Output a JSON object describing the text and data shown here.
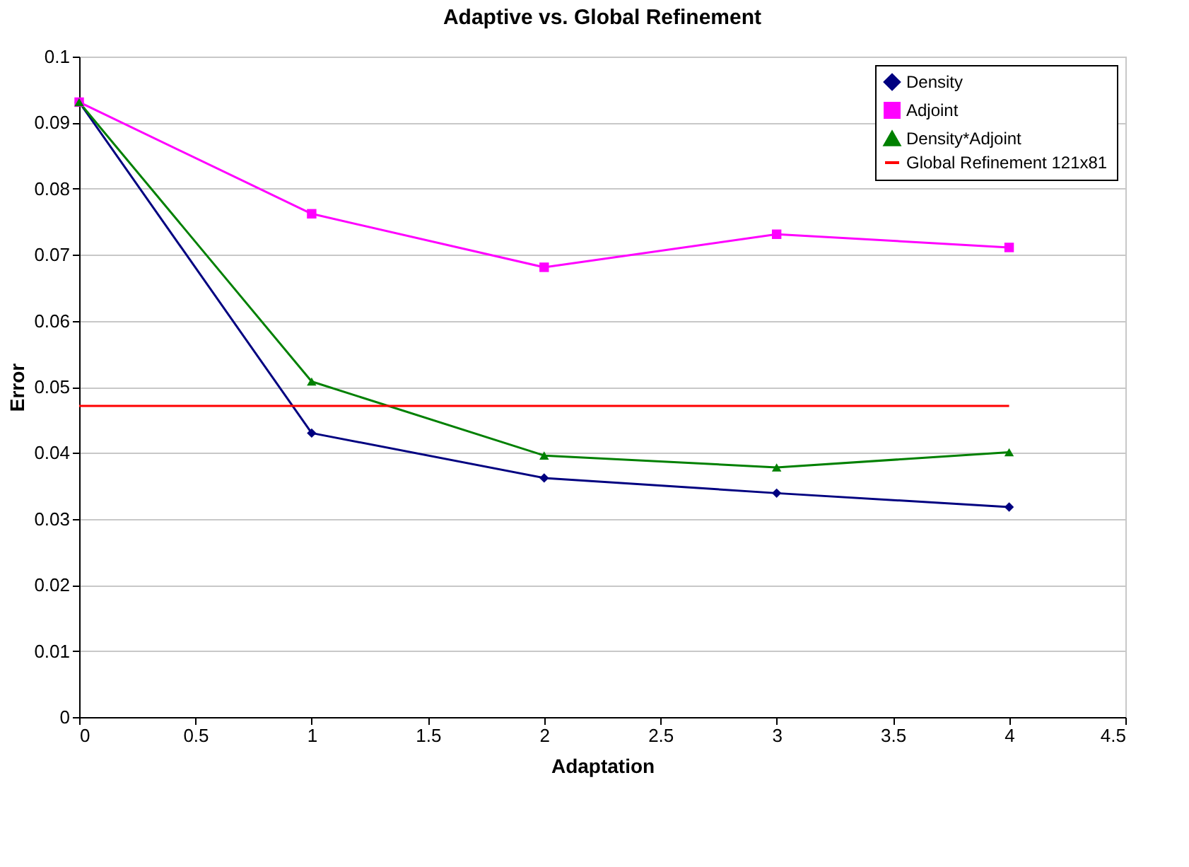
{
  "chart_data": {
    "type": "line",
    "title": "Adaptive vs. Global Refinement",
    "xlabel": "Adaptation",
    "ylabel": "Error",
    "x": [
      0,
      1,
      2,
      3,
      4
    ],
    "series": [
      {
        "name": "Density",
        "color": "#000080",
        "marker": "diamond",
        "values": [
          0.0931,
          0.043,
          0.0362,
          0.0339,
          0.0318
        ]
      },
      {
        "name": "Adjoint",
        "color": "#ff00ff",
        "marker": "square",
        "values": [
          0.0931,
          0.0762,
          0.0681,
          0.0731,
          0.0711
        ]
      },
      {
        "name": "Density*Adjoint",
        "color": "#008000",
        "marker": "triangle",
        "values": [
          0.0931,
          0.0508,
          0.0396,
          0.0378,
          0.0401
        ]
      },
      {
        "name": "Global Refinement 121x81",
        "color": "#ff0000",
        "marker": "none",
        "x": [
          0,
          4
        ],
        "values": [
          0.0471,
          0.0471
        ]
      }
    ],
    "xlim": [
      0,
      4.5
    ],
    "xticks": [
      0,
      0.5,
      1,
      1.5,
      2,
      2.5,
      3,
      3.5,
      4,
      4.5
    ],
    "ylim": [
      0,
      0.1
    ],
    "yticks": [
      0,
      0.01,
      0.02,
      0.03,
      0.04,
      0.05,
      0.06,
      0.07,
      0.08,
      0.09,
      0.1
    ],
    "grid": "y",
    "legend": "top right"
  }
}
